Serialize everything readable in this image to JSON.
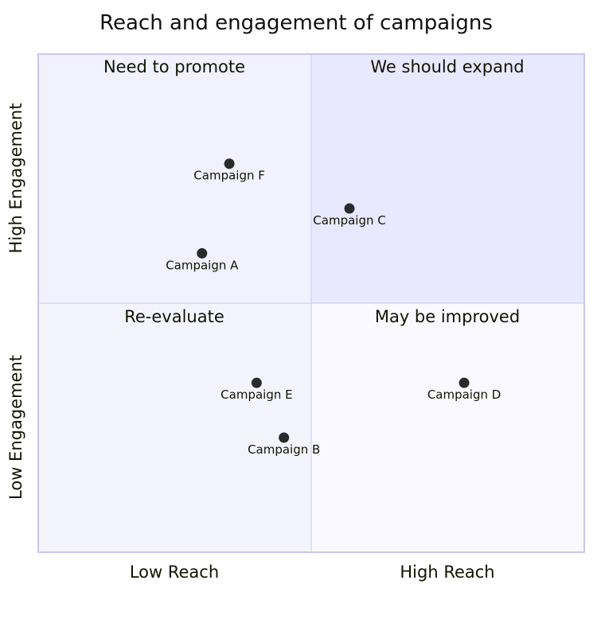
{
  "chart_data": {
    "type": "scatter",
    "subtype": "quadrant",
    "title": "Reach and engagement of campaigns",
    "x_axis": {
      "low_label": "Low Reach",
      "high_label": "High Reach",
      "range": [
        0,
        1
      ]
    },
    "y_axis": {
      "low_label": "Low Engagement",
      "high_label": "High Engagement",
      "range": [
        0,
        1
      ]
    },
    "quadrants": {
      "q1": {
        "label": "We should expand",
        "position": "top-right"
      },
      "q2": {
        "label": "Need to promote",
        "position": "top-left"
      },
      "q3": {
        "label": "Re-evaluate",
        "position": "bottom-left"
      },
      "q4": {
        "label": "May be improved",
        "position": "bottom-right"
      }
    },
    "points": [
      {
        "name": "Campaign A",
        "x": 0.3,
        "y": 0.6
      },
      {
        "name": "Campaign B",
        "x": 0.45,
        "y": 0.23
      },
      {
        "name": "Campaign C",
        "x": 0.57,
        "y": 0.69
      },
      {
        "name": "Campaign D",
        "x": 0.78,
        "y": 0.34
      },
      {
        "name": "Campaign E",
        "x": 0.4,
        "y": 0.34
      },
      {
        "name": "Campaign F",
        "x": 0.35,
        "y": 0.78
      }
    ],
    "colors": {
      "q1_fill": "#e8e8ff",
      "q2_fill": "#f1f1ff",
      "q3_fill": "#f4f4ff",
      "q4_fill": "#f9f9ff",
      "border": "#c7c7f1",
      "divider": "#c7c7f1",
      "point": "#2a2a2a"
    }
  }
}
